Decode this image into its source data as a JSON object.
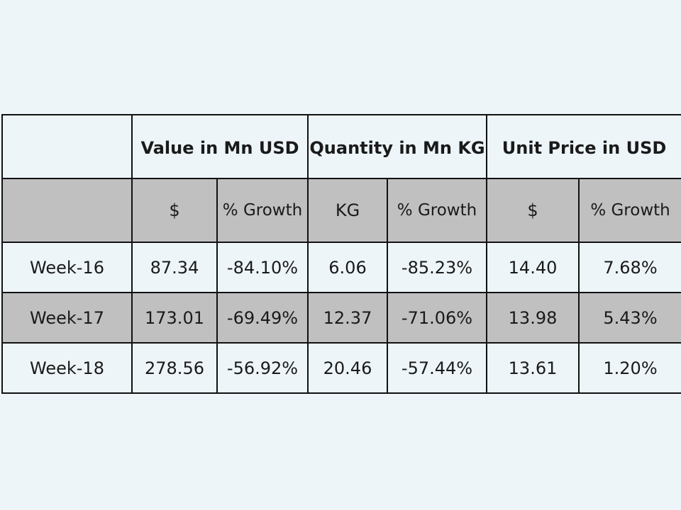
{
  "header": {
    "empty_corner": "",
    "groups": [
      "Value in Mn USD",
      "Quantity in Mn KG",
      "Unit Price in USD"
    ]
  },
  "subheader": {
    "empty_corner": "",
    "columns": [
      "$",
      "% Growth",
      "KG",
      "% Growth",
      "$",
      "% Growth"
    ]
  },
  "rows": [
    {
      "week": "Week-16",
      "value_usd": "87.34",
      "value_growth": "-84.10%",
      "quantity_kg": "6.06",
      "quantity_growth": "-85.23%",
      "unit_price": "14.40",
      "unit_price_growth": "7.68%"
    },
    {
      "week": "Week-17",
      "value_usd": "173.01",
      "value_growth": "-69.49%",
      "quantity_kg": "12.37",
      "quantity_growth": "-71.06%",
      "unit_price": "13.98",
      "unit_price_growth": "5.43%"
    },
    {
      "week": "Week-18",
      "value_usd": "278.56",
      "value_growth": "-56.92%",
      "quantity_kg": "20.46",
      "quantity_growth": "-57.44%",
      "unit_price": "13.61",
      "unit_price_growth": "1.20%"
    }
  ],
  "colors": {
    "background": "#edf5f9",
    "shaded_row": "#c0c0c0",
    "border": "#111111"
  }
}
